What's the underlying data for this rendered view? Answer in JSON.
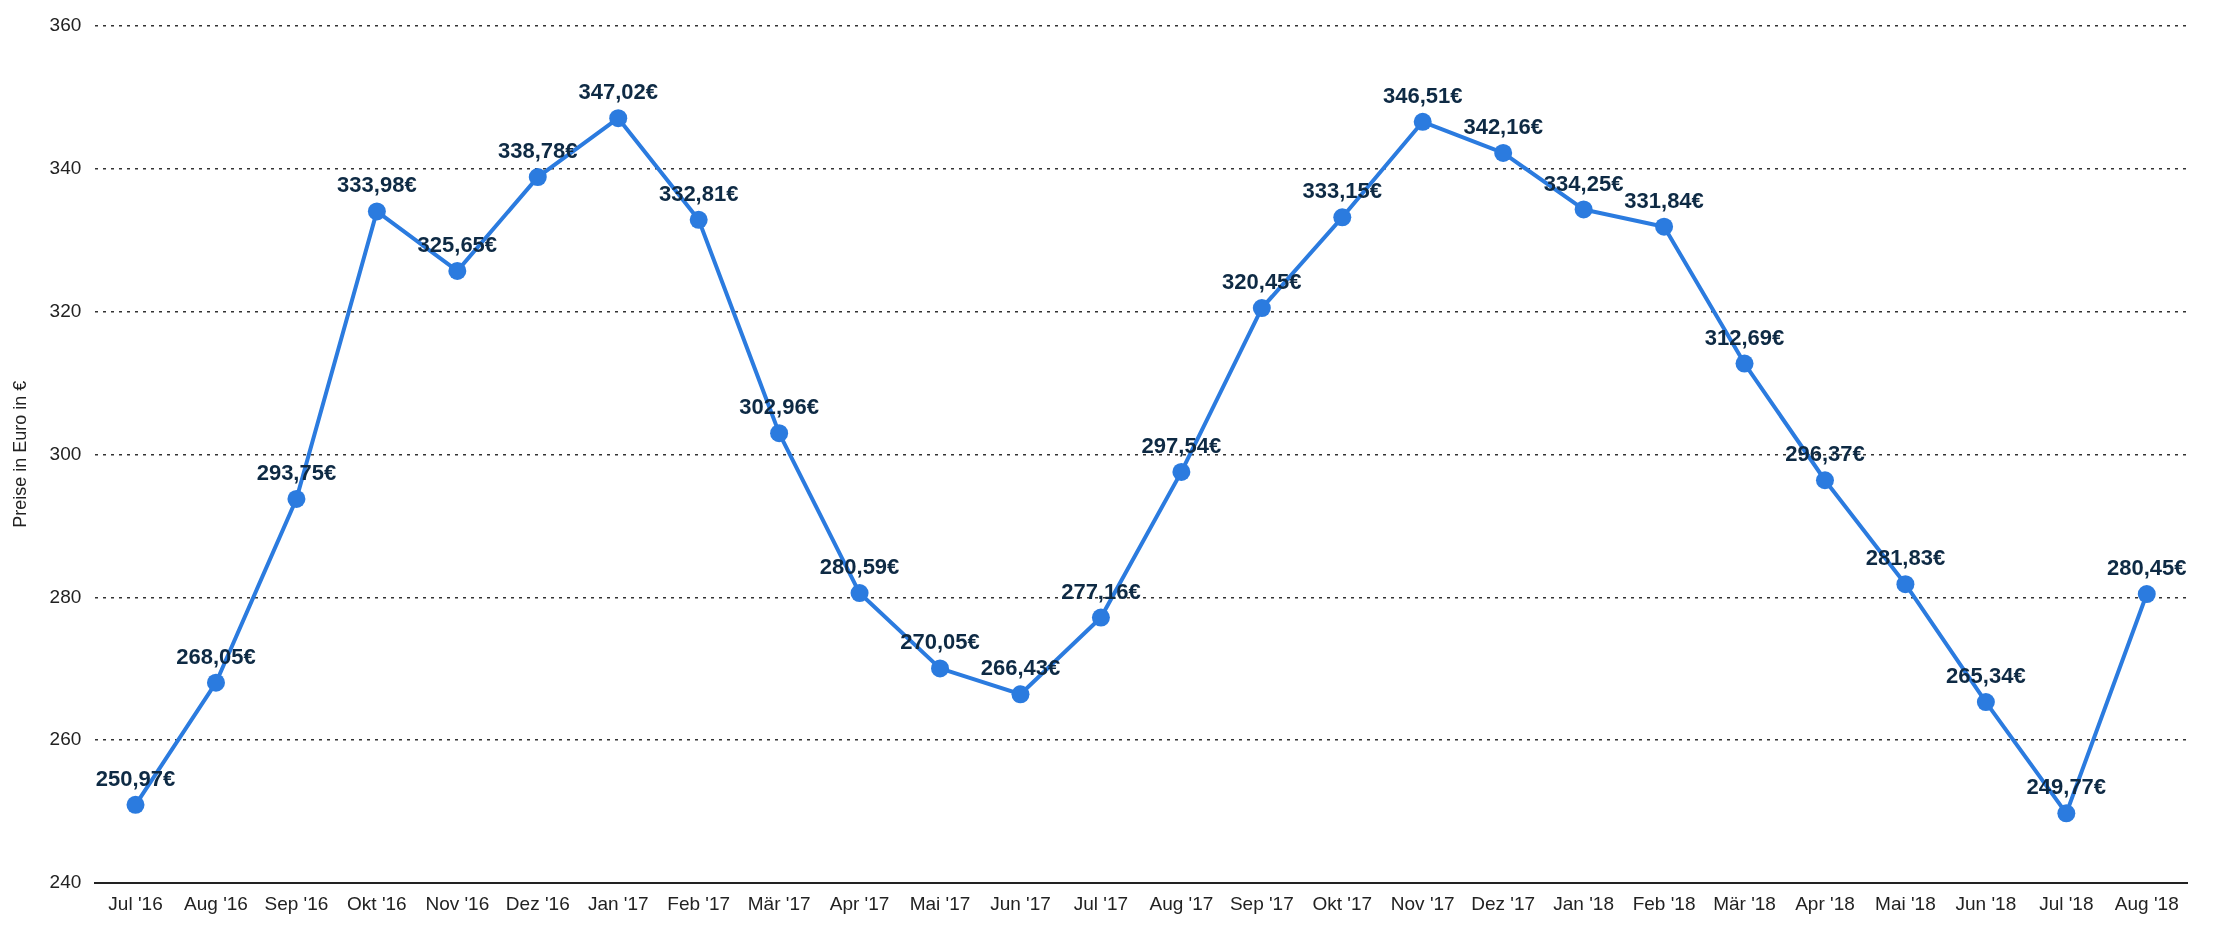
{
  "chart_data": {
    "type": "line",
    "ylabel": "Preise in Euro in €",
    "categories": [
      "Jul '16",
      "Aug '16",
      "Sep '16",
      "Okt '16",
      "Nov '16",
      "Dez '16",
      "Jan '17",
      "Feb '17",
      "Mär '17",
      "Apr '17",
      "Mai '17",
      "Jun '17",
      "Jul '17",
      "Aug '17",
      "Sep '17",
      "Okt '17",
      "Nov '17",
      "Dez '17",
      "Jan '18",
      "Feb '18",
      "Mär '18",
      "Apr '18",
      "Mai '18",
      "Jun '18",
      "Jul '18",
      "Aug '18"
    ],
    "values": [
      250.97,
      268.05,
      293.75,
      333.98,
      325.65,
      338.78,
      347.02,
      332.81,
      302.96,
      280.59,
      270.05,
      266.43,
      277.16,
      297.54,
      320.45,
      333.15,
      346.51,
      342.16,
      334.25,
      331.84,
      312.69,
      296.37,
      281.83,
      265.34,
      249.77,
      280.45
    ],
    "value_labels": [
      "250,97€",
      "268,05€",
      "293,75€",
      "333,98€",
      "325,65€",
      "338,78€",
      "347,02€",
      "332,81€",
      "302,96€",
      "280,59€",
      "270,05€",
      "266,43€",
      "277,16€",
      "297,54€",
      "320,45€",
      "333,15€",
      "346,51€",
      "342,16€",
      "334,25€",
      "331,84€",
      "312,69€",
      "296,37€",
      "281,83€",
      "265,34€",
      "249,77€",
      "280,45€"
    ],
    "color": "#2b7bdf",
    "ylim": [
      240,
      360
    ],
    "yticks": [
      240,
      260,
      280,
      300,
      320,
      340,
      360
    ],
    "grid": "y",
    "marker": "circle",
    "line_style": "solid",
    "legend": false
  }
}
